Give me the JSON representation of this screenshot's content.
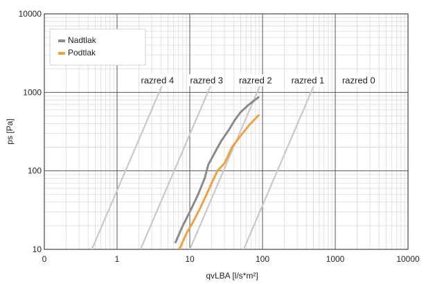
{
  "chart_data": {
    "type": "line",
    "xlabel": "qvLBA [l/s*m²]",
    "ylabel": "ps [Pa]",
    "xscale": "log",
    "yscale": "log",
    "xlim": [
      0.1,
      10000
    ],
    "ylim": [
      10,
      10000
    ],
    "xticks": [
      "0",
      "1",
      "10",
      "100",
      "1000",
      "10000"
    ],
    "yticks": [
      "10",
      "100",
      "1000",
      "10000"
    ],
    "grid": true,
    "legend_position": "top-left",
    "series": [
      {
        "name": "Nadtlak",
        "color": "#8a8a8a",
        "points": [
          [
            6.3,
            12
          ],
          [
            8,
            20
          ],
          [
            10,
            30
          ],
          [
            13,
            50
          ],
          [
            16,
            80
          ],
          [
            18,
            120
          ],
          [
            22,
            170
          ],
          [
            27,
            240
          ],
          [
            35,
            340
          ],
          [
            42,
            450
          ],
          [
            50,
            560
          ],
          [
            65,
            700
          ],
          [
            90,
            880
          ]
        ]
      },
      {
        "name": "Podtlak",
        "color": "#f0a040",
        "points": [
          [
            7.2,
            10
          ],
          [
            9,
            16
          ],
          [
            11,
            22
          ],
          [
            14,
            34
          ],
          [
            17,
            50
          ],
          [
            20,
            70
          ],
          [
            24,
            100
          ],
          [
            30,
            125
          ],
          [
            38,
            200
          ],
          [
            50,
            280
          ],
          [
            65,
            380
          ],
          [
            90,
            520
          ]
        ]
      }
    ],
    "class_lines": {
      "color": "#c8c8c8",
      "lines": [
        {
          "label": "razred 4",
          "from": [
            0.45,
            10
          ],
          "to": [
            4.5,
            1450
          ]
        },
        {
          "label": "razred 3",
          "from": [
            2.1,
            10
          ],
          "to": [
            21,
            1450
          ]
        },
        {
          "label": "razred 2",
          "from": [
            10,
            10
          ],
          "to": [
            100,
            1450
          ]
        },
        {
          "label": "razred 1",
          "from": [
            55,
            10
          ],
          "to": [
            550,
            1450
          ]
        }
      ],
      "labels": [
        {
          "text": "razred 4",
          "x": 3.6,
          "y": 1000
        },
        {
          "text": "razred 3",
          "x": 17,
          "y": 1000
        },
        {
          "text": "razred 2",
          "x": 80,
          "y": 1000
        },
        {
          "text": "razred 1",
          "x": 420,
          "y": 1000
        },
        {
          "text": "razred 0",
          "x": 2100,
          "y": 1000
        }
      ]
    }
  }
}
